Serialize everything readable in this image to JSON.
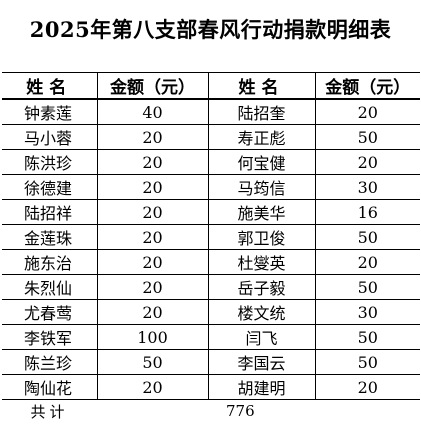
{
  "title": "2025年第八支部春风行动捐款明细表",
  "headers": {
    "name1": "姓名",
    "amount1": "金额（元）",
    "name2": "姓名",
    "amount2": "金额（元）"
  },
  "rows": [
    {
      "name1": "钟素莲",
      "amount1": "40",
      "name2": "陆招奎",
      "amount2": "20"
    },
    {
      "name1": "马小蓉",
      "amount1": "20",
      "name2": "寿正彪",
      "amount2": "50"
    },
    {
      "name1": "陈洪珍",
      "amount1": "20",
      "name2": "何宝健",
      "amount2": "20"
    },
    {
      "name1": "徐德建",
      "amount1": "20",
      "name2": "马筠信",
      "amount2": "30"
    },
    {
      "name1": "陆招祥",
      "amount1": "20",
      "name2": "施美华",
      "amount2": "16"
    },
    {
      "name1": "金莲珠",
      "amount1": "20",
      "name2": "郭卫俊",
      "amount2": "50"
    },
    {
      "name1": "施东治",
      "amount1": "20",
      "name2": "杜燮英",
      "amount2": "20"
    },
    {
      "name1": "朱烈仙",
      "amount1": "20",
      "name2": "岳子毅",
      "amount2": "50"
    },
    {
      "name1": "尤春莺",
      "amount1": "20",
      "name2": "楼文统",
      "amount2": "30"
    },
    {
      "name1": "李铁军",
      "amount1": "100",
      "name2": "闫飞",
      "amount2": "50"
    },
    {
      "name1": "陈兰珍",
      "amount1": "50",
      "name2": "李国云",
      "amount2": "50"
    },
    {
      "name1": "陶仙花",
      "amount1": "20",
      "name2": "胡建明",
      "amount2": "20"
    }
  ],
  "total": {
    "label": "共计",
    "value": "776"
  }
}
